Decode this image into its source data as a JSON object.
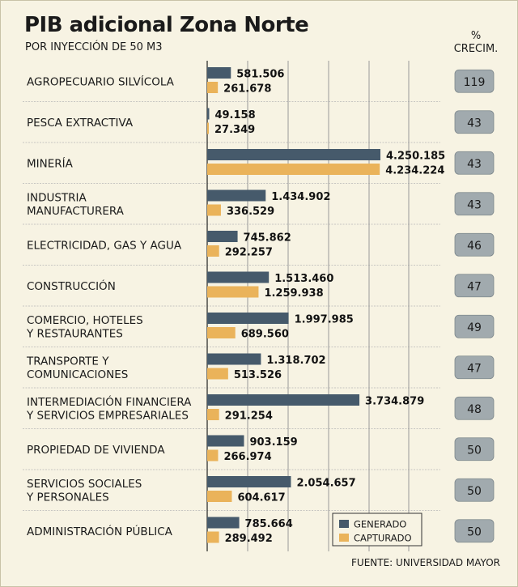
{
  "chart_data": {
    "type": "bar",
    "title": "PIB adicional Zona Norte",
    "subtitle": "POR INYECCIÓN DE 50 M3",
    "pct_header": [
      "%",
      "CRECIM."
    ],
    "categories": [
      [
        "AGROPECUARIO SILVÍCOLA"
      ],
      [
        "PESCA EXTRACTIVA"
      ],
      [
        "MINERÍA"
      ],
      [
        "INDUSTRIA",
        "MANUFACTURERA"
      ],
      [
        "ELECTRICIDAD, GAS Y AGUA"
      ],
      [
        "CONSTRUCCIÓN"
      ],
      [
        "COMERCIO, HOTELES",
        "Y RESTAURANTES"
      ],
      [
        "TRANSPORTE Y",
        "COMUNICACIONES"
      ],
      [
        "INTERMEDIACIÓN FINANCIERA",
        "Y SERVICIOS EMPRESARIALES"
      ],
      [
        "PROPIEDAD DE VIVIENDA"
      ],
      [
        "SERVICIOS SOCIALES",
        "Y PERSONALES"
      ],
      [
        "ADMINISTRACIÓN PÚBLICA"
      ]
    ],
    "series": [
      {
        "name": "GENERADO",
        "color": "#465a6b",
        "values": [
          581506,
          49158,
          4250185,
          1434902,
          745862,
          1513460,
          1997985,
          1318702,
          3734879,
          903159,
          2054657,
          785664
        ],
        "labels": [
          "581.506",
          "49.158",
          "4.250.185",
          "1.434.902",
          "745.862",
          "1.513.460",
          "1.997.985",
          "1.318.702",
          "3.734.879",
          "903.159",
          "2.054.657",
          "785.664"
        ]
      },
      {
        "name": "CAPTURADO",
        "color": "#eab35a",
        "values": [
          261678,
          27349,
          4234224,
          336529,
          292257,
          1259938,
          689560,
          513526,
          291254,
          266974,
          604617,
          289492
        ],
        "labels": [
          "261.678",
          "27.349",
          "4.234.224",
          "336.529",
          "292.257",
          "1.259.938",
          "689.560",
          "513.526",
          "291.254",
          "266.974",
          "604.617",
          "289.492"
        ]
      }
    ],
    "growth_pct": [
      "119",
      "43",
      "43",
      "43",
      "46",
      "47",
      "49",
      "47",
      "48",
      "50",
      "50",
      "50"
    ],
    "xlim": [
      0,
      4250185
    ],
    "grid": true,
    "legend_position": "bottom-right",
    "source": "FUENTE: UNIVERSIDAD MAYOR"
  },
  "colors": {
    "background": "#f7f3e3",
    "badge": "#a1aaae",
    "grid": "#9a9a9a",
    "row_separator": "#b8b8b8"
  }
}
